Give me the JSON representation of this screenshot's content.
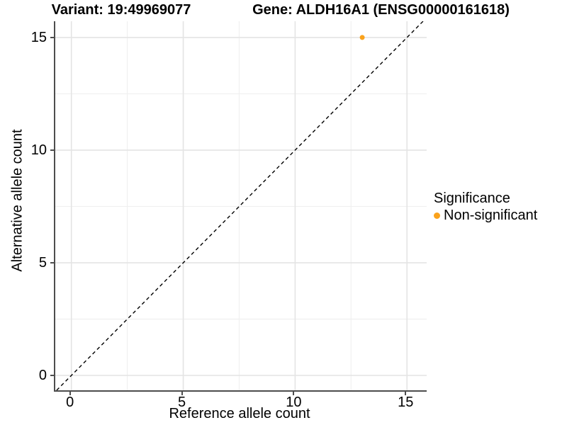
{
  "titles": {
    "left": "Variant: 19:49969077",
    "right": "Gene: ALDH16A1 (ENSG00000161618)"
  },
  "axes": {
    "x_label": "Reference allele count",
    "y_label": "Alternative allele count"
  },
  "legend": {
    "title": "Significance",
    "position": "right",
    "entries": [
      {
        "label": "Non-significant",
        "color": "#FAA21B"
      }
    ]
  },
  "colors": {
    "background": "#ffffff",
    "axis_line": "#4d4d4d",
    "grid_major": "#e4e4e4",
    "grid_minor": "#f0f0f0",
    "reference_line": "#000000",
    "point": "#FAA21B",
    "text": "#000000"
  },
  "chart_data": {
    "type": "scatter",
    "title": "Variant: 19:49969077 | Gene: ALDH16A1 (ENSG00000161618)",
    "xlabel": "Reference allele count",
    "ylabel": "Alternative allele count",
    "xlim": [
      -0.72,
      15.88
    ],
    "ylim": [
      -0.66,
      15.72
    ],
    "x_ticks": [
      0,
      5,
      10,
      15
    ],
    "y_ticks": [
      0,
      5,
      10,
      15
    ],
    "x_minor_ticks": [
      2.5,
      7.5,
      12.5
    ],
    "y_minor_ticks": [
      2.5,
      7.5,
      12.5
    ],
    "grid": true,
    "legend_position": "right",
    "series": [
      {
        "name": "Non-significant",
        "color": "#FAA21B",
        "points": [
          {
            "x": 13,
            "y": 15
          }
        ]
      }
    ],
    "reference_line": {
      "kind": "identity",
      "equation": "y = x",
      "style": "dashed",
      "color": "#000000"
    }
  }
}
